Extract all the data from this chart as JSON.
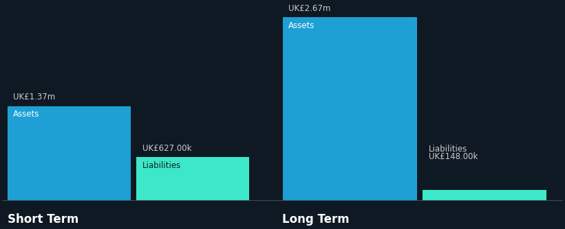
{
  "background_color": "#0f1923",
  "short_term": {
    "assets_value": 1.37,
    "liabilities_value": 0.627,
    "assets_label": "UK£1.37m",
    "liabilities_label": "UK£627.00k",
    "assets_text": "Assets",
    "liabilities_text": "Liabilities",
    "title": "Short Term"
  },
  "long_term": {
    "assets_value": 2.67,
    "liabilities_value": 0.148,
    "assets_label": "UK£2.67m",
    "liabilities_label": "UK£148.00k",
    "assets_text": "Assets",
    "liabilities_text": "Liabilities",
    "title": "Long Term"
  },
  "assets_color": "#1ea0d5",
  "liabilities_color": "#3de8c8",
  "text_color": "#ffffff",
  "label_color": "#cccccc",
  "baseline_color": "#3a4a5a",
  "font_family": "DejaVu Sans",
  "label_fontsize": 8.5,
  "inside_fontsize": 8.5,
  "title_fontsize": 12
}
